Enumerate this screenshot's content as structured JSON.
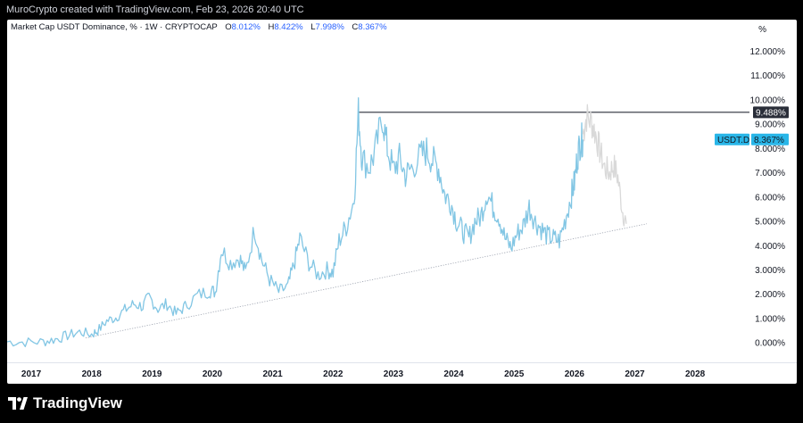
{
  "header": {
    "attribution": "MuroCrypto created with TradingView.com, Feb 23, 2026 20:40 UTC"
  },
  "legend": {
    "title": "Market Cap USDT Dominance, % · 1W · CRYPTOCAP",
    "open_key": "O",
    "open_value": "8.012%",
    "high_key": "H",
    "high_value": "8.422%",
    "low_key": "L",
    "low_value": "7.998%",
    "close_key": "C",
    "close_value": "8.367%"
  },
  "axis": {
    "unit_label": "%"
  },
  "price_tags": {
    "resistance_value": "9.488%",
    "symbol": "USDT.D",
    "current_value": "8.367%"
  },
  "footer": {
    "brand": "TradingView"
  },
  "colors": {
    "line": "#82c6e4",
    "projection": "#d9d9d9",
    "resistance": "#2a2e39",
    "current_tag": "#29b6e8",
    "trendline": "#9aa0ad"
  },
  "chart_data": {
    "type": "line",
    "title": "Market Cap USDT Dominance, % · 1W · CRYPTOCAP",
    "xlabel": "",
    "ylabel": "%",
    "x_ticks": [
      "2017",
      "2018",
      "2019",
      "2020",
      "2021",
      "2022",
      "2023",
      "2024",
      "2025",
      "2026",
      "2027",
      "2028"
    ],
    "y_ticks": [
      "0.000%",
      "1.000%",
      "2.000%",
      "3.000%",
      "4.000%",
      "5.000%",
      "6.000%",
      "7.000%",
      "8.000%",
      "9.000%",
      "10.000%",
      "11.000%",
      "12.000%"
    ],
    "xlim": [
      2016.6,
      2028.9
    ],
    "ylim": [
      -0.8,
      13.3
    ],
    "grid": false,
    "series": [
      {
        "points": [
          [
            2016.6,
            0.05
          ],
          [
            2016.9,
            0.03
          ],
          [
            2017.2,
            0.05
          ],
          [
            2017.4,
            0.15
          ],
          [
            2017.6,
            0.3
          ],
          [
            2017.8,
            0.45
          ],
          [
            2018.0,
            0.35
          ],
          [
            2018.1,
            0.5
          ],
          [
            2018.25,
            0.9
          ],
          [
            2018.4,
            1.05
          ],
          [
            2018.55,
            1.35
          ],
          [
            2018.7,
            1.6
          ],
          [
            2018.85,
            1.5
          ],
          [
            2018.95,
            1.9
          ],
          [
            2019.1,
            1.4
          ],
          [
            2019.25,
            1.6
          ],
          [
            2019.4,
            1.2
          ],
          [
            2019.55,
            1.5
          ],
          [
            2019.75,
            1.95
          ],
          [
            2019.95,
            2.15
          ],
          [
            2020.05,
            2.1
          ],
          [
            2020.15,
            3.85
          ],
          [
            2020.3,
            3.3
          ],
          [
            2020.45,
            3.5
          ],
          [
            2020.55,
            2.9
          ],
          [
            2020.7,
            4.7
          ],
          [
            2020.82,
            3.4
          ],
          [
            2020.95,
            2.6
          ],
          [
            2021.1,
            2.1
          ],
          [
            2021.25,
            2.3
          ],
          [
            2021.35,
            3.2
          ],
          [
            2021.45,
            4.3
          ],
          [
            2021.6,
            3.3
          ],
          [
            2021.75,
            2.8
          ],
          [
            2021.9,
            3.0
          ],
          [
            2022.0,
            2.9
          ],
          [
            2022.1,
            4.2
          ],
          [
            2022.22,
            4.8
          ],
          [
            2022.35,
            5.9
          ],
          [
            2022.42,
            9.45
          ],
          [
            2022.48,
            7.6
          ],
          [
            2022.6,
            7.2
          ],
          [
            2022.7,
            7.9
          ],
          [
            2022.82,
            9.3
          ],
          [
            2022.9,
            8.0
          ],
          [
            2023.0,
            7.1
          ],
          [
            2023.1,
            7.6
          ],
          [
            2023.2,
            6.9
          ],
          [
            2023.3,
            7.2
          ],
          [
            2023.45,
            7.7
          ],
          [
            2023.55,
            7.9
          ],
          [
            2023.65,
            7.5
          ],
          [
            2023.75,
            7.2
          ],
          [
            2023.85,
            6.1
          ],
          [
            2023.95,
            5.8
          ],
          [
            2024.05,
            5.0
          ],
          [
            2024.15,
            4.6
          ],
          [
            2024.25,
            4.3
          ],
          [
            2024.35,
            5.0
          ],
          [
            2024.45,
            5.2
          ],
          [
            2024.55,
            6.2
          ],
          [
            2024.65,
            5.6
          ],
          [
            2024.75,
            5.2
          ],
          [
            2024.85,
            4.3
          ],
          [
            2024.95,
            3.9
          ],
          [
            2025.05,
            4.5
          ],
          [
            2025.15,
            4.8
          ],
          [
            2025.25,
            5.6
          ],
          [
            2025.35,
            5.0
          ],
          [
            2025.45,
            4.7
          ],
          [
            2025.55,
            4.4
          ],
          [
            2025.65,
            4.3
          ],
          [
            2025.75,
            4.2
          ],
          [
            2025.85,
            5.1
          ],
          [
            2025.95,
            6.1
          ],
          [
            2026.0,
            6.6
          ],
          [
            2026.05,
            7.7
          ],
          [
            2026.1,
            8.3
          ],
          [
            2026.14,
            8.37
          ]
        ]
      },
      {
        "points": [
          [
            2026.14,
            8.6
          ],
          [
            2026.2,
            9.3
          ],
          [
            2026.28,
            9.1
          ],
          [
            2026.35,
            8.6
          ],
          [
            2026.42,
            7.9
          ],
          [
            2026.5,
            7.2
          ],
          [
            2026.58,
            7.0
          ],
          [
            2026.65,
            7.3
          ],
          [
            2026.72,
            6.8
          ],
          [
            2026.8,
            5.4
          ],
          [
            2026.86,
            4.9
          ]
        ]
      }
    ],
    "resistance_level": 9.488,
    "trendline": [
      [
        2017.9,
        0.2
      ],
      [
        2027.2,
        4.9
      ]
    ]
  }
}
